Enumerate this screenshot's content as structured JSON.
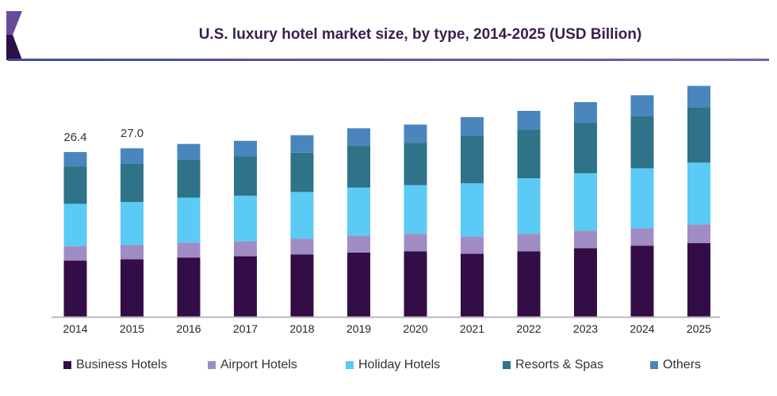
{
  "title": "U.S. luxury hotel market size, by type, 2014-2025 (USD Billion)",
  "chart_data": {
    "type": "bar",
    "stacked": true,
    "title": "U.S. luxury hotel market size, by type, 2014-2025 (USD Billion)",
    "xlabel": "",
    "ylabel": "",
    "ylim": [
      0,
      38
    ],
    "grid": false,
    "legend_position": "bottom",
    "categories": [
      "2014",
      "2015",
      "2016",
      "2017",
      "2018",
      "2019",
      "2020",
      "2021",
      "2022",
      "2023",
      "2024",
      "2025"
    ],
    "series": [
      {
        "name": "Business Hotels",
        "color": "#330d45",
        "values": [
          9.0,
          9.2,
          9.5,
          9.7,
          10.0,
          10.3,
          10.5,
          10.1,
          10.5,
          11.0,
          11.4,
          11.8
        ]
      },
      {
        "name": "Airport Hotels",
        "color": "#a08cc4",
        "values": [
          2.3,
          2.3,
          2.4,
          2.4,
          2.5,
          2.7,
          2.8,
          2.8,
          2.8,
          2.8,
          2.8,
          3.0
        ]
      },
      {
        "name": "Holiday Hotels",
        "color": "#5bcaf4",
        "values": [
          6.8,
          6.9,
          7.2,
          7.3,
          7.5,
          7.7,
          7.8,
          8.5,
          8.9,
          9.2,
          9.6,
          9.9
        ]
      },
      {
        "name": "Resorts & Spas",
        "color": "#2e7388",
        "values": [
          6.0,
          6.1,
          6.1,
          6.3,
          6.3,
          6.7,
          6.8,
          7.6,
          7.8,
          8.1,
          8.4,
          8.9
        ]
      },
      {
        "name": "Others",
        "color": "#4a86bd",
        "values": [
          2.3,
          2.5,
          2.5,
          2.5,
          2.8,
          2.8,
          2.9,
          3.0,
          3.0,
          3.3,
          3.3,
          3.4
        ]
      }
    ],
    "data_labels": [
      {
        "category": "2014",
        "text": "26.4"
      },
      {
        "category": "2015",
        "text": "27.0"
      }
    ]
  }
}
